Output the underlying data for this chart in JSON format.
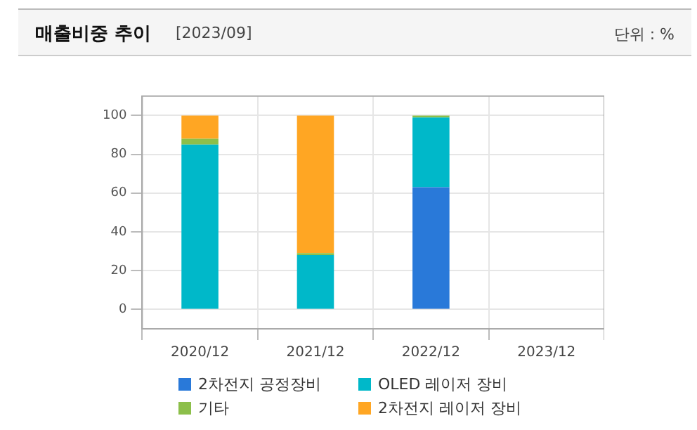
{
  "chart_data": {
    "type": "bar",
    "title": "매출비중 추이",
    "subtitle": "[2023/09]",
    "annotations": [
      "단위 : %"
    ],
    "categories": [
      "2020/12",
      "2021/12",
      "2022/12",
      "2023/12"
    ],
    "stacked": true,
    "series": [
      {
        "name": "2차전지 공정장비",
        "color": "#2979d9",
        "values": [
          null,
          null,
          63,
          null
        ]
      },
      {
        "name": "OLED 레이저 장비",
        "color": "#00b8c9",
        "values": [
          85,
          28,
          36,
          null
        ]
      },
      {
        "name": "기타",
        "color": "#8cbf4a",
        "values": [
          3,
          1,
          1,
          null
        ]
      },
      {
        "name": "2차전지 레이저 장비",
        "color": "#ffa623",
        "values": [
          12,
          71,
          null,
          null
        ]
      }
    ],
    "ylim": [
      -10,
      110
    ],
    "yticks": [
      0,
      20,
      40,
      60,
      80,
      100
    ],
    "grid": true,
    "legend": "bottom"
  }
}
